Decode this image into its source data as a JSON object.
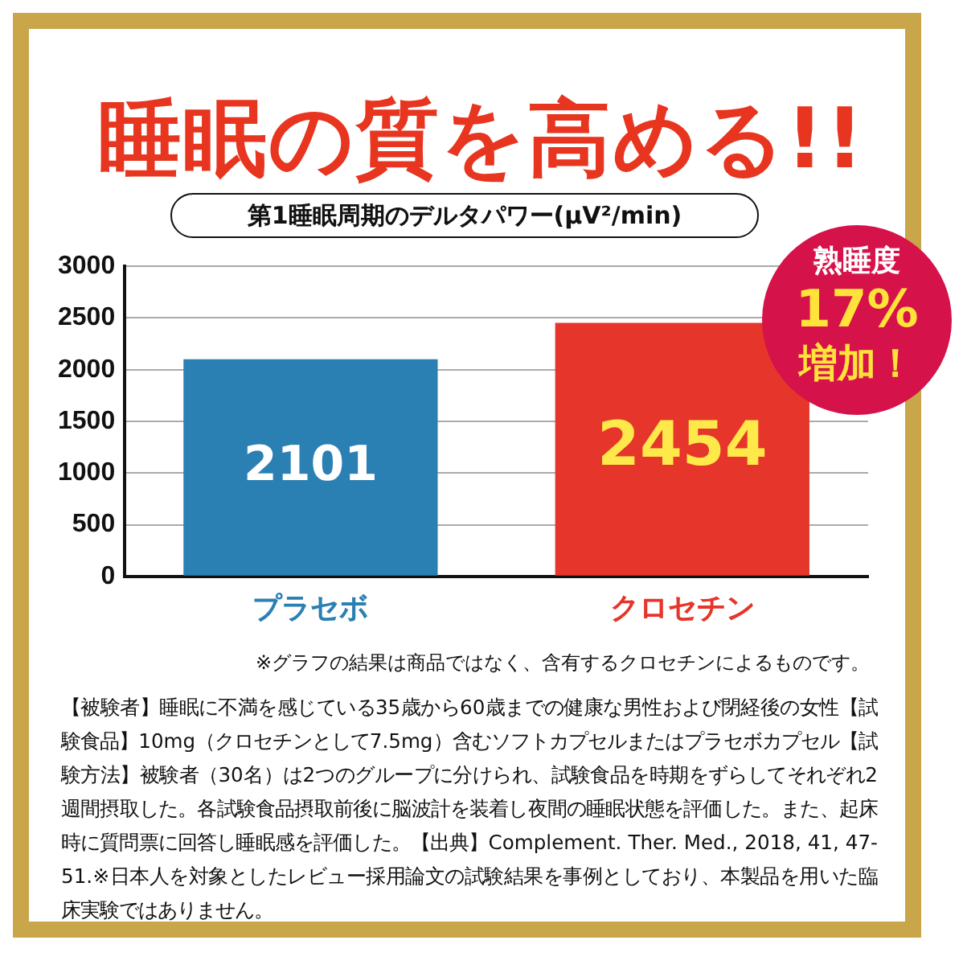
{
  "chart_data": {
    "type": "bar",
    "title": "睡眠の質を高める!!",
    "subtitle": "第1睡眠周期のデルタパワー(μV²/min)",
    "categories": [
      "プラセボ",
      "クロセチン"
    ],
    "values": [
      2101,
      2454
    ],
    "colors": [
      "#2b80b3",
      "#e6352a"
    ],
    "ylim": [
      0,
      3000
    ],
    "yticks": [
      0,
      500,
      1000,
      1500,
      2000,
      2500,
      3000
    ],
    "grid": "y",
    "data_labels": true,
    "legend": false,
    "annotations": [
      "熟睡度",
      "17%",
      "増加！",
      "※グラフの結果は商品ではなく、含有するクロセチンによるものです。",
      "【被験者】睡眠に不満を感じている35歳から60歳までの健康な男性および閉経後の女性【試験食品】10mg（クロセチンとして7.5mg）含むソフトカプセルまたはプラセボカプセル【試験方法】被験者（30名）は2つのグループに分けられ、試験食品を時期をずらしてそれぞれ2週間摂取した。各試験食品摂取前後に脳波計を装着し夜間の睡眠状態を評価した。また、起床時に質問票に回答し睡眠感を評価した。【出典】Complement. Ther. Med., 2018, 41, 47-51.※日本人を対象としたレビュー採用論文の試験結果を事例としており、本製品を用いた臨床実験ではありません。"
    ]
  }
}
